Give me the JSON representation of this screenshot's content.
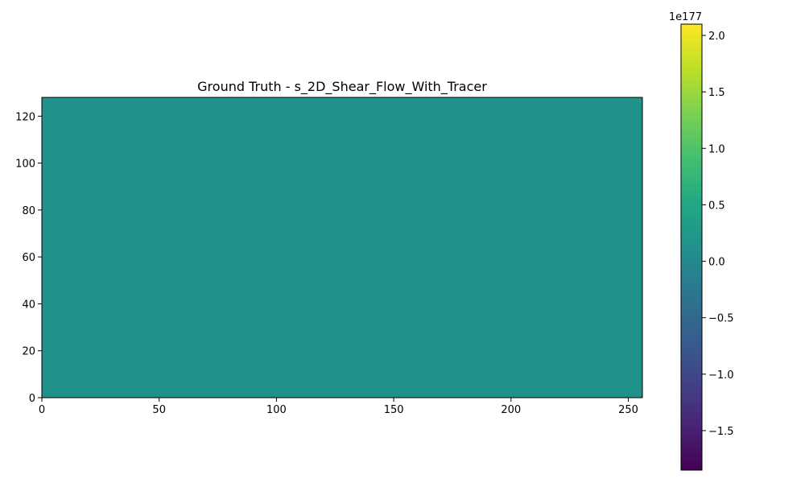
{
  "chart_data": {
    "type": "heatmap",
    "title": "Ground Truth - s_2D_Shear_Flow_With_Tracer",
    "xlabel": "",
    "ylabel": "",
    "xlim": [
      0,
      256
    ],
    "ylim": [
      0,
      128
    ],
    "x_ticks": [
      0,
      50,
      100,
      150,
      200,
      250
    ],
    "y_ticks": [
      0,
      20,
      40,
      60,
      80,
      100,
      120
    ],
    "fill_value": 0.0,
    "fill_color": "#21918c",
    "colorbar": {
      "colormap": "viridis",
      "vmin": -1.85,
      "vmax": 2.1,
      "offset_text": "1e177",
      "ticks": [
        -1.5,
        -1.0,
        -0.5,
        0.0,
        0.5,
        1.0,
        1.5,
        2.0
      ],
      "tick_labels": [
        "−1.5",
        "−1.0",
        "−0.5",
        "0.0",
        "0.5",
        "1.0",
        "1.5",
        "2.0"
      ]
    },
    "grid": false
  }
}
